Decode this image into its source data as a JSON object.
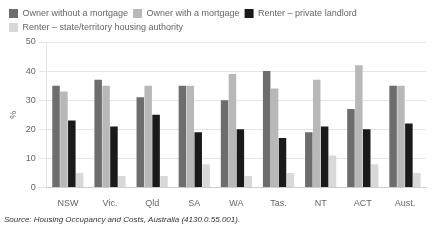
{
  "chart_data": {
    "type": "bar",
    "categories": [
      "NSW",
      "Vic.",
      "Qld",
      "SA",
      "WA",
      "Tas.",
      "NT",
      "ACT",
      "Aust."
    ],
    "series": [
      {
        "name": "Owner without a mortgage",
        "color": "#6d6d6d",
        "values": [
          35,
          37,
          31,
          35,
          30,
          40,
          19,
          27,
          35
        ]
      },
      {
        "name": "Owner with a mortgage",
        "color": "#b8b8b8",
        "values": [
          33,
          35,
          35,
          35,
          39,
          34,
          37,
          42,
          35
        ]
      },
      {
        "name": "Renter – private landlord",
        "color": "#1a1a1a",
        "values": [
          23,
          21,
          25,
          19,
          20,
          17,
          21,
          20,
          22
        ]
      },
      {
        "name": "Renter – state/territory housing authority",
        "color": "#d8d8d8",
        "values": [
          5,
          4,
          4,
          8,
          4,
          5,
          11,
          8,
          5
        ]
      }
    ],
    "ylabel": "%",
    "source": "Source: Housing Occupancy and Costs, Australia (4130.0.55.001).",
    "ylim": [
      0,
      50
    ],
    "yticks": [
      0,
      10,
      20,
      30,
      40,
      50
    ],
    "grid": true,
    "legend": "top"
  }
}
